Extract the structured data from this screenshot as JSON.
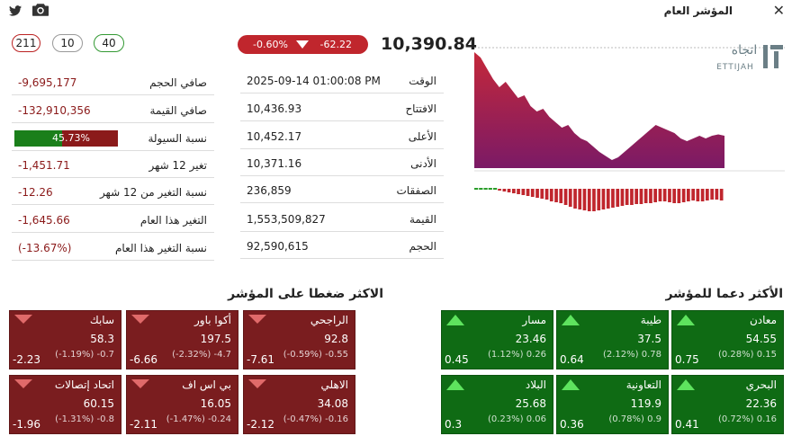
{
  "header": {
    "title": "المؤشر العام",
    "close_icon": "✕"
  },
  "counts": {
    "declining": "211",
    "unchanged": "10",
    "advancing": "40"
  },
  "index": {
    "value": "10,390.84",
    "change_points": "-62.22",
    "change_percent": "-0.60%"
  },
  "left_stats": [
    {
      "label": "صافي الحجم",
      "value": "-9,695,177"
    },
    {
      "label": "صافي القيمة",
      "value": "-132,910,356"
    },
    {
      "label": "نسبة السيولة",
      "value": "45.73%",
      "fraction": 0.4573
    },
    {
      "label": "تغير 12 شهر",
      "value": "-1,451.71"
    },
    {
      "label": "نسبة التغير من 12 شهر",
      "value": "-12.26"
    },
    {
      "label": "التغير هذا العام",
      "value": "-1,645.66"
    },
    {
      "label": "نسبة التغير هذا العام",
      "value": "(-13.67%)"
    }
  ],
  "mid_stats": [
    {
      "label": "الوقت",
      "value": "2025-09-14 01:00:08 PM"
    },
    {
      "label": "الافتتاح",
      "value": "10,436.93"
    },
    {
      "label": "الأعلى",
      "value": "10,452.17"
    },
    {
      "label": "الأدنى",
      "value": "10,371.16"
    },
    {
      "label": "الصفقات",
      "value": "236,859"
    },
    {
      "label": "القيمة",
      "value": "1,553,509,827"
    },
    {
      "label": "الحجم",
      "value": "92,590,615"
    }
  ],
  "logo": {
    "arabic": "اتجاه",
    "latin": "ETTIJAH"
  },
  "chart_data": {
    "type": "area",
    "values": [
      10452,
      10448,
      10440,
      10432,
      10426,
      10430,
      10424,
      10418,
      10420,
      10412,
      10408,
      10410,
      10404,
      10400,
      10396,
      10398,
      10392,
      10388,
      10386,
      10382,
      10378,
      10375,
      10372,
      10374,
      10378,
      10382,
      10386,
      10390,
      10394,
      10398,
      10396,
      10394,
      10392,
      10388,
      10386,
      10388,
      10390,
      10388,
      10390,
      10391,
      10390
    ],
    "volume_bars": [
      0,
      0,
      0,
      0,
      0,
      2,
      3,
      4,
      5,
      6,
      7,
      8,
      9,
      10,
      11,
      12,
      14,
      15,
      16,
      18,
      20,
      22,
      23,
      24,
      25,
      25,
      24,
      23,
      22,
      21,
      20,
      19,
      18,
      18,
      17,
      17,
      16,
      16,
      15,
      14,
      14,
      15,
      16,
      16,
      15,
      14,
      13,
      14,
      14,
      13,
      12,
      12,
      13
    ],
    "colors": {
      "top": "#c4283a",
      "bottom": "#7b1a66",
      "bars": "#c0262d",
      "bars_start": "#2a9d2a"
    }
  },
  "sections": {
    "pressure_down": "الاكثر ضغطا على المؤشر",
    "support_up": "الأكثر دعما للمؤشر"
  },
  "down_tiles": [
    {
      "name": "الراجحي",
      "price": "92.8",
      "detail": "(-0.59%) -0.55",
      "impact": "-7.61"
    },
    {
      "name": "أكوا باور",
      "price": "197.5",
      "detail": "(-2.32%) -4.7",
      "impact": "-6.66"
    },
    {
      "name": "سابك",
      "price": "58.3",
      "detail": "(-1.19%) -0.7",
      "impact": "-2.23"
    },
    {
      "name": "الاهلي",
      "price": "34.08",
      "detail": "(-0.47%) -0.16",
      "impact": "-2.12"
    },
    {
      "name": "بي اس اف",
      "price": "16.05",
      "detail": "(-1.47%) -0.24",
      "impact": "-2.11"
    },
    {
      "name": "اتحاد إتصالات",
      "price": "60.15",
      "detail": "(-1.31%) -0.8",
      "impact": "-1.96"
    }
  ],
  "up_tiles": [
    {
      "name": "معادن",
      "price": "54.55",
      "detail": "(0.28%) 0.15",
      "impact": "0.75"
    },
    {
      "name": "طيبة",
      "price": "37.5",
      "detail": "(2.12%) 0.78",
      "impact": "0.64"
    },
    {
      "name": "مسار",
      "price": "23.46",
      "detail": "(1.12%) 0.26",
      "impact": "0.45"
    },
    {
      "name": "البحري",
      "price": "22.36",
      "detail": "(0.72%) 0.16",
      "impact": "0.41"
    },
    {
      "name": "التعاونية",
      "price": "119.9",
      "detail": "(0.78%) 0.9",
      "impact": "0.36"
    },
    {
      "name": "البلاد",
      "price": "25.68",
      "detail": "(0.23%) 0.06",
      "impact": "0.3"
    }
  ]
}
